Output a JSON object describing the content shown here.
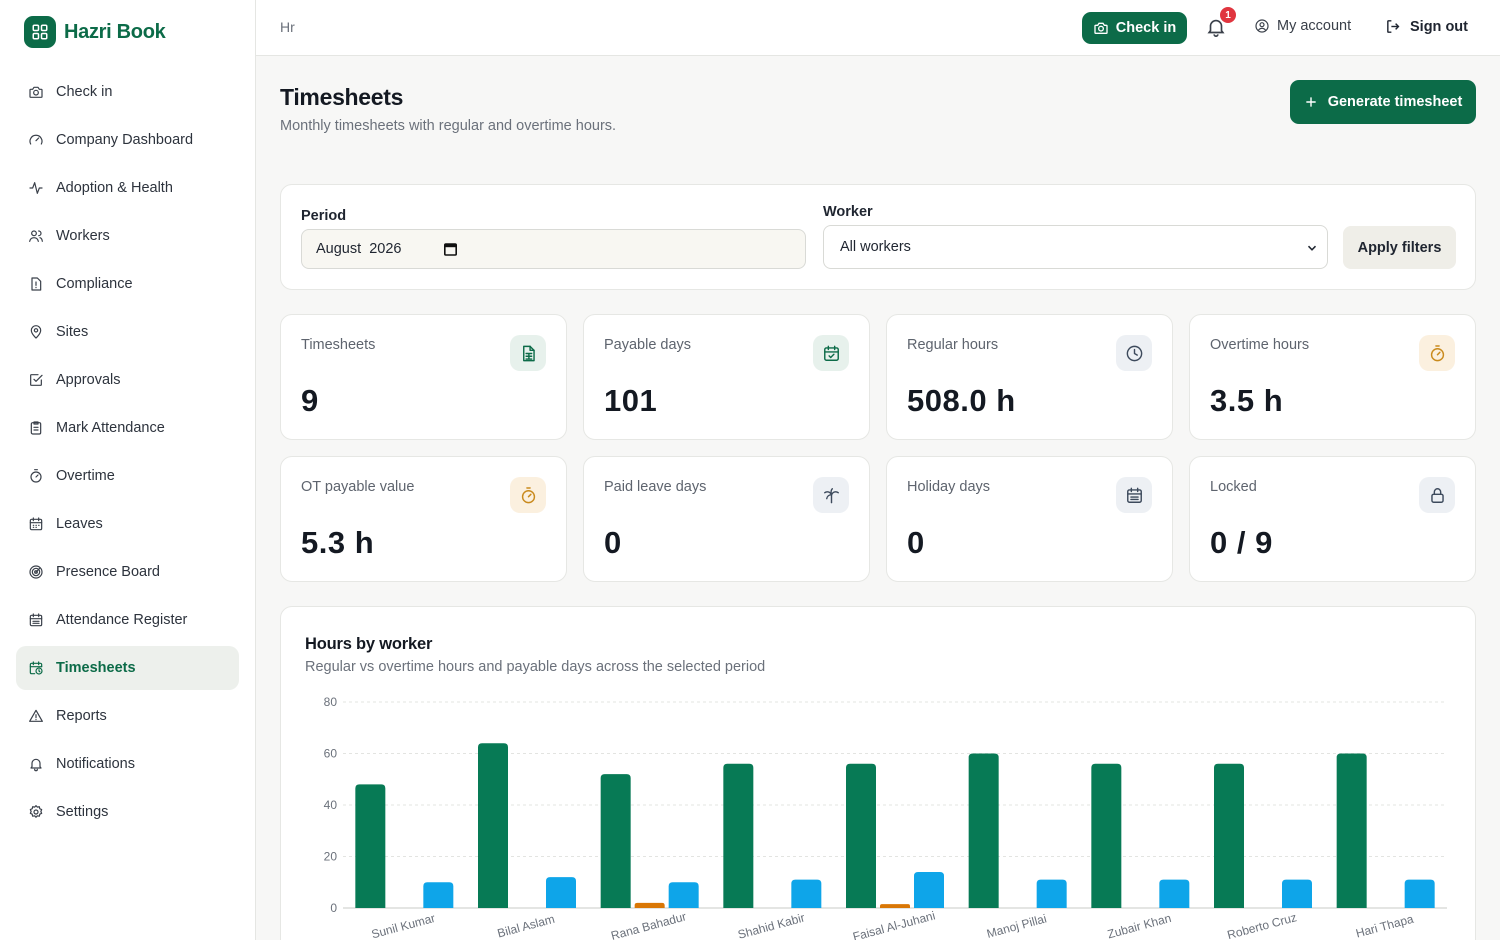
{
  "brand": {
    "name": "Hazri Book"
  },
  "sidebar": {
    "items": [
      {
        "label": "Check in",
        "icon": "camera-icon",
        "active": false
      },
      {
        "label": "Company Dashboard",
        "icon": "gauge-icon",
        "active": false
      },
      {
        "label": "Adoption & Health",
        "icon": "activity-icon",
        "active": false
      },
      {
        "label": "Workers",
        "icon": "users-icon",
        "active": false
      },
      {
        "label": "Compliance",
        "icon": "file-alert-icon",
        "active": false
      },
      {
        "label": "Sites",
        "icon": "map-pin-icon",
        "active": false
      },
      {
        "label": "Approvals",
        "icon": "check-square-icon",
        "active": false
      },
      {
        "label": "Mark Attendance",
        "icon": "clipboard-icon",
        "active": false
      },
      {
        "label": "Overtime",
        "icon": "timer-icon",
        "active": false
      },
      {
        "label": "Leaves",
        "icon": "calendar-icon",
        "active": false
      },
      {
        "label": "Presence Board",
        "icon": "radar-icon",
        "active": false
      },
      {
        "label": "Attendance Register",
        "icon": "calendar-list-icon",
        "active": false
      },
      {
        "label": "Timesheets",
        "icon": "calendar-clock-icon",
        "active": true
      },
      {
        "label": "Reports",
        "icon": "alert-triangle-icon",
        "active": false
      },
      {
        "label": "Notifications",
        "icon": "bell-icon",
        "active": false
      },
      {
        "label": "Settings",
        "icon": "gear-icon",
        "active": false
      }
    ]
  },
  "topbar": {
    "breadcrumb": "Hr",
    "check_in_label": "Check in",
    "notification_count": "1",
    "account_label": "My account",
    "sign_out_label": "Sign out"
  },
  "header": {
    "title": "Timesheets",
    "subtitle": "Monthly timesheets with regular and overtime hours.",
    "generate_label": "Generate timesheet"
  },
  "filters": {
    "period_label": "Period",
    "period_value": "August  2026",
    "worker_label": "Worker",
    "worker_value": "All workers",
    "apply_label": "Apply filters"
  },
  "stats": [
    {
      "label": "Timesheets",
      "value": "9",
      "icon": "file-spreadsheet-icon",
      "tone": "green"
    },
    {
      "label": "Payable days",
      "value": "101",
      "icon": "calendar-check-icon",
      "tone": "green"
    },
    {
      "label": "Regular hours",
      "value": "508.0 h",
      "icon": "clock-icon",
      "tone": "gray"
    },
    {
      "label": "Overtime hours",
      "value": "3.5 h",
      "icon": "timer-icon",
      "tone": "amber"
    },
    {
      "label": "OT payable value",
      "value": "5.3 h",
      "icon": "timer-icon",
      "tone": "amber"
    },
    {
      "label": "Paid leave days",
      "value": "0",
      "icon": "palm-tree-icon",
      "tone": "gray"
    },
    {
      "label": "Holiday days",
      "value": "0",
      "icon": "calendar-days-icon",
      "tone": "gray"
    },
    {
      "label": "Locked",
      "value": "0 / 9",
      "icon": "lock-icon",
      "tone": "gray"
    }
  ],
  "chart": {
    "title": "Hours by worker",
    "subtitle": "Regular vs overtime hours and payable days across the selected period"
  },
  "colors": {
    "brand": "#0c6b48",
    "regular": "#077a55",
    "overtime": "#d97706",
    "payable": "#0ea5e9"
  },
  "chart_data": {
    "type": "bar",
    "categories": [
      "Sunil Kumar",
      "Bilal Aslam",
      "Rana Bahadur",
      "Shahid Kabir",
      "Faisal Al-Juhani",
      "Manoj Pillai",
      "Zubair Khan",
      "Roberto Cruz",
      "Hari Thapa"
    ],
    "series": [
      {
        "values": [
          48,
          64,
          52,
          56,
          56,
          60,
          56,
          56,
          60
        ]
      },
      {
        "values": [
          0,
          0,
          2,
          0,
          1.5,
          0,
          0,
          0,
          0
        ]
      },
      {
        "values": [
          10,
          12,
          10,
          11,
          14,
          11,
          11,
          11,
          11
        ]
      }
    ],
    "ylim": [
      0,
      80
    ],
    "yticks": [
      0,
      20,
      40,
      60,
      80
    ],
    "grid": true
  }
}
